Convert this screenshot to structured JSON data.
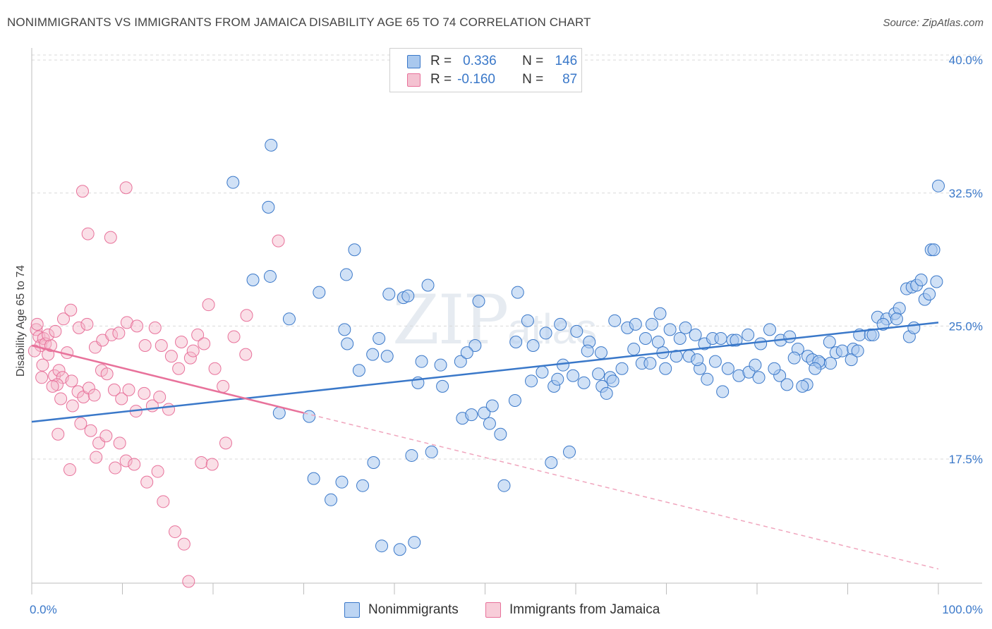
{
  "title": "NONIMMIGRANTS VS IMMIGRANTS FROM JAMAICA DISABILITY AGE 65 TO 74 CORRELATION CHART",
  "source": "Source: ZipAtlas.com",
  "watermark": {
    "zip": "ZIP",
    "atlas": "atlas"
  },
  "legend": {
    "row1": {
      "r_label": "R =",
      "r_value": "0.336",
      "n_label": "N =",
      "n_value": "146"
    },
    "row2": {
      "r_label": "R =",
      "r_value": "-0.160",
      "n_label": "N =",
      "n_value": "87"
    }
  },
  "colors": {
    "blue": "#3a78c9",
    "blue_fill": "#a9c8ee",
    "pink": "#e8729b",
    "pink_fill": "#f4b7c9"
  },
  "chart_data": {
    "type": "scatter",
    "xlabel": "",
    "ylabel": "Disability Age 65 to 74",
    "xlim": [
      0,
      100
    ],
    "ylim": [
      10.5,
      41.0
    ],
    "y_ticks": [
      {
        "v": 17.5,
        "label": "17.5%"
      },
      {
        "v": 25.0,
        "label": "25.0%"
      },
      {
        "v": 32.5,
        "label": "32.5%"
      },
      {
        "v": 40.0,
        "label": "40.0%"
      }
    ],
    "x_ticks": [
      {
        "v": 0,
        "label": "0.0%"
      },
      {
        "v": 100,
        "label": "100.0%"
      }
    ],
    "grid": true,
    "legend_position": "top-center",
    "series": [
      {
        "name": "Nonimmigrants",
        "color": "#3a78c9",
        "trend": {
          "x0": 0,
          "y0": 19.6,
          "x1": 100,
          "y1": 25.2
        },
        "points": [
          [
            22.2,
            33.1
          ],
          [
            26.4,
            35.2
          ],
          [
            26.1,
            31.7
          ],
          [
            35.6,
            29.3
          ],
          [
            24.4,
            27.6
          ],
          [
            26.3,
            27.8
          ],
          [
            28.4,
            25.4
          ],
          [
            31.7,
            26.9
          ],
          [
            34.8,
            24.0
          ],
          [
            34.5,
            24.8
          ],
          [
            38.3,
            24.3
          ],
          [
            37.6,
            23.4
          ],
          [
            39.4,
            26.8
          ],
          [
            41.0,
            26.6
          ],
          [
            43.7,
            27.3
          ],
          [
            54.7,
            25.3
          ],
          [
            53.6,
            26.9
          ],
          [
            49.3,
            26.4
          ],
          [
            48.9,
            23.9
          ],
          [
            47.3,
            23.0
          ],
          [
            53.4,
            24.1
          ],
          [
            55.3,
            23.9
          ],
          [
            56.7,
            24.6
          ],
          [
            58.3,
            25.1
          ],
          [
            60.1,
            24.7
          ],
          [
            61.5,
            24.1
          ],
          [
            62.8,
            23.5
          ],
          [
            64.3,
            25.3
          ],
          [
            65.7,
            24.9
          ],
          [
            66.6,
            25.1
          ],
          [
            67.7,
            24.3
          ],
          [
            68.4,
            25.1
          ],
          [
            69.3,
            25.7
          ],
          [
            70.4,
            24.8
          ],
          [
            71.5,
            24.3
          ],
          [
            72.1,
            24.9
          ],
          [
            73.2,
            24.5
          ],
          [
            74.2,
            24.0
          ],
          [
            75.1,
            24.3
          ],
          [
            76.0,
            24.3
          ],
          [
            77.3,
            24.2
          ],
          [
            79.0,
            24.5
          ],
          [
            80.4,
            24.0
          ],
          [
            81.4,
            24.8
          ],
          [
            82.6,
            24.2
          ],
          [
            83.6,
            24.4
          ],
          [
            84.5,
            23.7
          ],
          [
            85.6,
            23.3
          ],
          [
            86.1,
            23.1
          ],
          [
            87.0,
            22.9
          ],
          [
            88.0,
            24.1
          ],
          [
            88.7,
            23.5
          ],
          [
            89.4,
            23.6
          ],
          [
            90.6,
            23.7
          ],
          [
            91.3,
            24.5
          ],
          [
            92.5,
            24.5
          ],
          [
            93.3,
            25.5
          ],
          [
            94.3,
            25.4
          ],
          [
            95.2,
            25.7
          ],
          [
            95.7,
            26.0
          ],
          [
            96.5,
            27.1
          ],
          [
            97.1,
            27.2
          ],
          [
            97.6,
            27.3
          ],
          [
            98.1,
            27.6
          ],
          [
            99.2,
            29.3
          ],
          [
            99.5,
            29.3
          ],
          [
            100.0,
            32.9
          ],
          [
            27.3,
            20.1
          ],
          [
            30.6,
            19.9
          ],
          [
            31.1,
            16.4
          ],
          [
            33.0,
            15.2
          ],
          [
            34.2,
            16.2
          ],
          [
            36.5,
            16.0
          ],
          [
            37.7,
            17.3
          ],
          [
            38.6,
            12.6
          ],
          [
            40.6,
            12.4
          ],
          [
            41.9,
            17.7
          ],
          [
            42.2,
            12.8
          ],
          [
            42.6,
            21.8
          ],
          [
            44.1,
            17.9
          ],
          [
            45.3,
            21.6
          ],
          [
            47.5,
            19.8
          ],
          [
            48.5,
            20.0
          ],
          [
            49.9,
            20.1
          ],
          [
            50.5,
            19.5
          ],
          [
            50.8,
            20.5
          ],
          [
            51.7,
            18.9
          ],
          [
            53.3,
            20.8
          ],
          [
            55.1,
            21.9
          ],
          [
            56.3,
            22.4
          ],
          [
            57.6,
            21.6
          ],
          [
            58.6,
            22.8
          ],
          [
            59.7,
            22.2
          ],
          [
            60.9,
            21.8
          ],
          [
            61.3,
            23.6
          ],
          [
            62.5,
            22.3
          ],
          [
            63.8,
            22.1
          ],
          [
            65.1,
            22.6
          ],
          [
            66.4,
            23.7
          ],
          [
            67.3,
            22.9
          ],
          [
            68.2,
            22.9
          ],
          [
            69.9,
            22.6
          ],
          [
            71.1,
            23.3
          ],
          [
            72.5,
            23.3
          ],
          [
            73.7,
            22.6
          ],
          [
            75.4,
            23.0
          ],
          [
            76.8,
            22.6
          ],
          [
            78.0,
            22.2
          ],
          [
            79.1,
            22.4
          ],
          [
            80.2,
            22.1
          ],
          [
            82.5,
            22.2
          ],
          [
            83.3,
            21.7
          ],
          [
            84.1,
            23.2
          ],
          [
            85.5,
            21.7
          ],
          [
            86.8,
            23.0
          ],
          [
            88.1,
            22.9
          ],
          [
            90.4,
            23.1
          ],
          [
            91.1,
            23.6
          ],
          [
            92.8,
            24.5
          ],
          [
            93.9,
            25.1
          ],
          [
            95.4,
            25.4
          ],
          [
            96.8,
            24.4
          ],
          [
            97.3,
            24.9
          ],
          [
            98.5,
            26.5
          ],
          [
            99.0,
            26.8
          ],
          [
            99.8,
            27.5
          ],
          [
            62.9,
            21.6
          ],
          [
            63.4,
            21.2
          ],
          [
            64.1,
            21.9
          ],
          [
            69.1,
            24.1
          ],
          [
            69.6,
            23.5
          ],
          [
            73.4,
            23.1
          ],
          [
            74.5,
            22.0
          ],
          [
            77.7,
            24.2
          ],
          [
            79.8,
            22.8
          ],
          [
            81.9,
            22.6
          ],
          [
            85.0,
            21.6
          ],
          [
            86.4,
            22.6
          ],
          [
            76.2,
            21.3
          ],
          [
            57.3,
            17.3
          ],
          [
            59.3,
            17.9
          ],
          [
            52.1,
            16.0
          ],
          [
            34.7,
            27.9
          ],
          [
            36.1,
            22.5
          ],
          [
            39.2,
            23.3
          ],
          [
            45.1,
            22.8
          ],
          [
            48.0,
            23.5
          ],
          [
            41.5,
            26.7
          ],
          [
            43.0,
            23.0
          ],
          [
            58.0,
            22.0
          ]
        ]
      },
      {
        "name": "Immigrants from Jamaica",
        "color": "#e8729b",
        "trend": {
          "x0": 0,
          "y0": 23.9,
          "x1": 30,
          "y1": 20.1
        },
        "trend_dashed": {
          "x0": 30,
          "y0": 20.1,
          "x1": 100,
          "y1": 11.3
        },
        "points": [
          [
            0.5,
            24.8
          ],
          [
            0.8,
            24.4
          ],
          [
            1.0,
            23.9
          ],
          [
            0.3,
            23.6
          ],
          [
            1.3,
            24.3
          ],
          [
            1.5,
            24.0
          ],
          [
            0.6,
            25.1
          ],
          [
            1.8,
            23.4
          ],
          [
            2.1,
            23.9
          ],
          [
            1.1,
            22.1
          ],
          [
            2.5,
            22.2
          ],
          [
            3.0,
            22.5
          ],
          [
            3.4,
            22.1
          ],
          [
            2.8,
            21.7
          ],
          [
            3.9,
            23.5
          ],
          [
            4.4,
            21.9
          ],
          [
            5.1,
            21.3
          ],
          [
            5.7,
            21.0
          ],
          [
            6.3,
            21.5
          ],
          [
            6.9,
            21.1
          ],
          [
            7.7,
            22.5
          ],
          [
            8.3,
            22.3
          ],
          [
            9.1,
            21.4
          ],
          [
            9.9,
            20.9
          ],
          [
            10.7,
            21.4
          ],
          [
            11.5,
            20.2
          ],
          [
            12.4,
            21.2
          ],
          [
            13.3,
            20.5
          ],
          [
            14.1,
            21.0
          ],
          [
            15.1,
            20.3
          ],
          [
            16.5,
            24.1
          ],
          [
            17.5,
            23.2
          ],
          [
            18.3,
            24.5
          ],
          [
            19.0,
            24.0
          ],
          [
            20.2,
            22.6
          ],
          [
            21.1,
            21.6
          ],
          [
            22.3,
            24.4
          ],
          [
            23.6,
            23.4
          ],
          [
            1.8,
            24.5
          ],
          [
            2.6,
            24.7
          ],
          [
            3.5,
            25.4
          ],
          [
            4.3,
            25.9
          ],
          [
            5.2,
            24.9
          ],
          [
            6.1,
            25.1
          ],
          [
            7.0,
            23.8
          ],
          [
            7.8,
            24.2
          ],
          [
            8.8,
            24.5
          ],
          [
            9.6,
            24.6
          ],
          [
            10.5,
            25.2
          ],
          [
            11.6,
            25.0
          ],
          [
            12.5,
            23.9
          ],
          [
            13.6,
            24.9
          ],
          [
            14.3,
            23.9
          ],
          [
            15.4,
            23.3
          ],
          [
            16.2,
            22.6
          ],
          [
            17.8,
            23.6
          ],
          [
            1.2,
            22.8
          ],
          [
            2.3,
            21.6
          ],
          [
            3.2,
            20.9
          ],
          [
            4.5,
            20.5
          ],
          [
            5.4,
            19.5
          ],
          [
            6.5,
            19.1
          ],
          [
            7.4,
            18.4
          ],
          [
            8.2,
            18.8
          ],
          [
            9.7,
            18.4
          ],
          [
            10.4,
            17.4
          ],
          [
            11.3,
            17.2
          ],
          [
            12.7,
            16.2
          ],
          [
            13.9,
            16.8
          ],
          [
            14.5,
            15.1
          ],
          [
            15.8,
            13.4
          ],
          [
            16.8,
            12.7
          ],
          [
            17.3,
            10.6
          ],
          [
            18.7,
            17.3
          ],
          [
            19.9,
            17.2
          ],
          [
            21.4,
            18.4
          ],
          [
            4.2,
            16.9
          ],
          [
            7.1,
            17.6
          ],
          [
            9.2,
            17.0
          ],
          [
            2.9,
            18.9
          ],
          [
            5.6,
            32.6
          ],
          [
            10.4,
            32.8
          ],
          [
            6.2,
            30.2
          ],
          [
            8.7,
            30.0
          ],
          [
            27.2,
            29.8
          ],
          [
            19.5,
            26.2
          ],
          [
            23.7,
            25.6
          ]
        ]
      }
    ]
  },
  "bottom_legend": {
    "label1": "Nonimmigrants",
    "label2": "Immigrants from Jamaica"
  }
}
